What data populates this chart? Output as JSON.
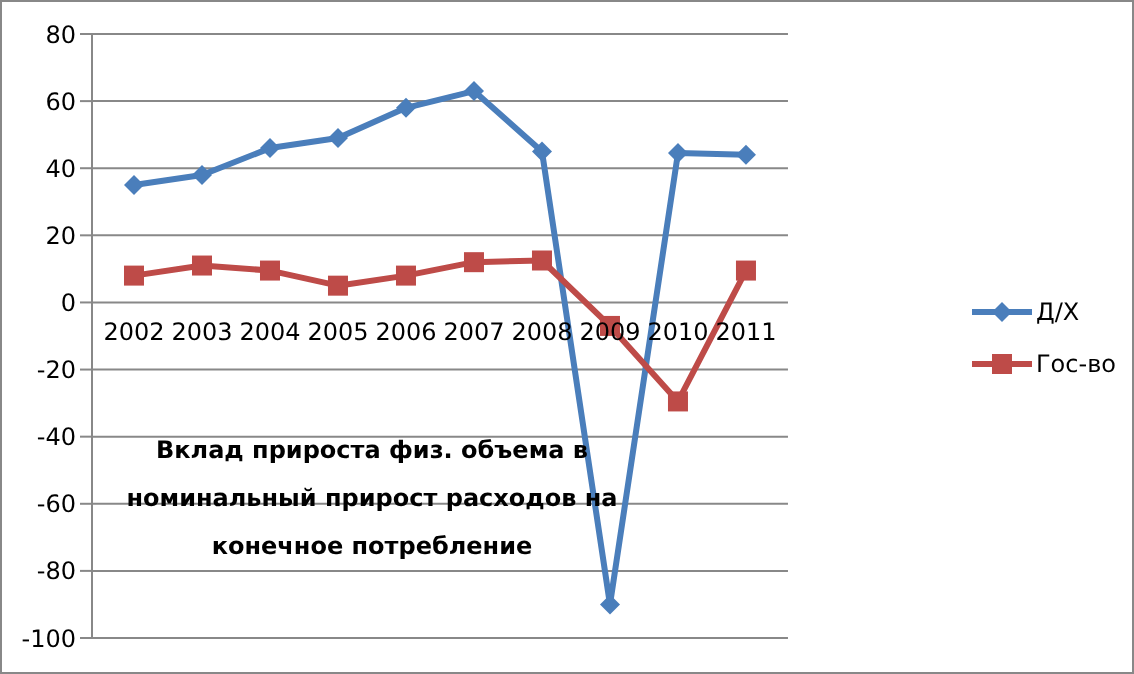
{
  "chart_data": {
    "type": "line",
    "categories": [
      "2002",
      "2003",
      "2004",
      "2005",
      "2006",
      "2007",
      "2008",
      "2009",
      "2010",
      "2011"
    ],
    "series": [
      {
        "name": "Д/Х",
        "color": "#4a7ebb",
        "marker": "diamond",
        "values": [
          35,
          38,
          46,
          49,
          58,
          63,
          45,
          -90,
          44.5,
          44
        ]
      },
      {
        "name": "Гос-во",
        "color": "#be4b48",
        "marker": "square",
        "values": [
          8,
          11,
          9.5,
          5,
          8,
          12,
          12.5,
          -7,
          -29.5,
          9.5
        ]
      }
    ],
    "ylim": [
      -100,
      80
    ],
    "yticks": [
      -100,
      -80,
      -60,
      -40,
      -20,
      0,
      20,
      40,
      60,
      80
    ],
    "grid": "y",
    "legend": "right",
    "annotations": [
      "Вклад прироста физ. объема в номинальный прирост расходов на конечное потребление"
    ]
  }
}
